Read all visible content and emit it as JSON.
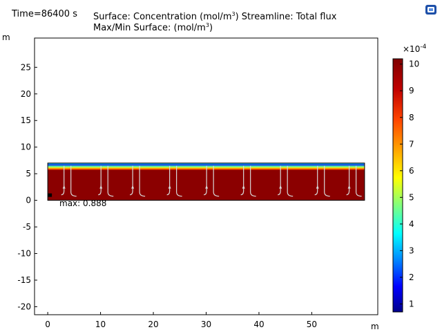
{
  "header": {
    "time_label": "Time=86400 s",
    "surface_prefix": "Surface: Concentration (mol/m",
    "surface_exp": "3",
    "surface_suffix": ")  Streamline: Total flux",
    "maxmin_prefix": "Max/Min Surface:  (mol/m",
    "maxmin_exp": "3",
    "maxmin_suffix": ")"
  },
  "toolbar": {
    "icon": "graphics-window-icon"
  },
  "plot": {
    "y_unit": "m",
    "x_unit": "m",
    "y_ticks": [
      "25",
      "20",
      "15",
      "10",
      "5",
      "0",
      "-5",
      "-10",
      "-15",
      "-20"
    ],
    "x_ticks": [
      "0",
      "10",
      "20",
      "30",
      "40",
      "50"
    ],
    "max_label": "max: 0.888",
    "x_range": [
      -2.5,
      62.5
    ],
    "y_range": [
      -21.5,
      30.5
    ],
    "domain": {
      "x": [
        0,
        60
      ],
      "y": [
        0,
        7
      ]
    },
    "streamline_x": [
      4,
      11,
      17,
      24,
      31,
      38,
      45,
      52,
      58
    ]
  },
  "colorbar": {
    "exponent_base": "×10",
    "exponent_power": "-4",
    "ticks": [
      "10",
      "9",
      "8",
      "7",
      "6",
      "5",
      "4",
      "3",
      "2",
      "1"
    ],
    "range": [
      0.7,
      10.2
    ],
    "colors": [
      "#7f0000",
      "#e31a00",
      "#ffa500",
      "#ffff00",
      "#7fff7f",
      "#00ffff",
      "#0080ff",
      "#0000ff",
      "#00008b"
    ]
  }
}
